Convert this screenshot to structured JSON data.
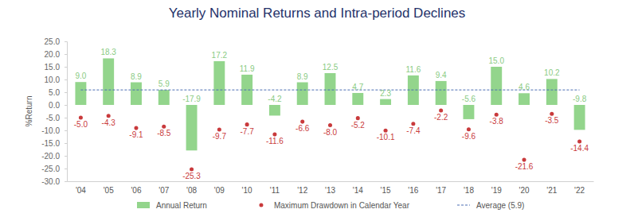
{
  "chart_data": {
    "type": "bar",
    "title": "Yearly Nominal Returns and Intra-period Declines",
    "y_label": "%Return",
    "categories": [
      "'04",
      "'05",
      "'06",
      "'07",
      "'08",
      "'09",
      "'10",
      "'11",
      "'12",
      "'13",
      "'14",
      "'15",
      "'16",
      "'17",
      "'18",
      "'19",
      "'20",
      "'21",
      "'22"
    ],
    "series": [
      {
        "name": "Annual Return",
        "type": "bar",
        "color": "#93d58c",
        "values": [
          9.0,
          18.3,
          8.9,
          5.9,
          -17.9,
          17.2,
          11.9,
          -4.2,
          8.9,
          12.5,
          4.7,
          2.3,
          11.6,
          9.4,
          -5.6,
          15.0,
          4.6,
          10.2,
          -9.8
        ],
        "value_labels": [
          "9.0",
          "18.3",
          "8.9",
          "5.9",
          "-17.9",
          "17.2",
          "11.9",
          "-4.2",
          "8.9",
          "12.5",
          "4.7",
          "2.3",
          "11.6",
          "9.4",
          "-5.6",
          "15.0",
          "4.6",
          "10.2",
          "-9.8"
        ]
      },
      {
        "name": "Maximum Drawdown in Calendar Year",
        "type": "scatter",
        "marker": "circle",
        "color": "#c93a3c",
        "values": [
          -5.0,
          -4.3,
          -9.1,
          -8.5,
          -25.3,
          -9.7,
          -7.7,
          -11.6,
          -6.6,
          -8.0,
          -5.2,
          -10.1,
          -7.4,
          -2.2,
          -9.6,
          -3.8,
          -21.6,
          -3.5,
          -14.4
        ],
        "value_labels": [
          "-5.0",
          "-4.3",
          "-9.1",
          "-8.5",
          "-25.3",
          "-9.7",
          "-7.7",
          "-11.6",
          "-6.6",
          "-8.0",
          "-5.2",
          "-10.1",
          "-7.4",
          "-2.2",
          "-9.6",
          "-3.8",
          "-21.6",
          "-3.5",
          "-14.4"
        ]
      },
      {
        "name": "Average (5.9)",
        "type": "line",
        "line_style": "dashed",
        "color": "#4a6db3",
        "values": [
          5.9,
          5.9,
          5.9,
          5.9,
          5.9,
          5.9,
          5.9,
          5.9,
          5.9,
          5.9,
          5.9,
          5.9,
          5.9,
          5.9,
          5.9,
          5.9,
          5.9,
          5.9,
          5.9
        ]
      }
    ],
    "ylim": [
      -30,
      25
    ],
    "yticks": [
      {
        "value": -30,
        "label": "-30.0"
      },
      {
        "value": -25,
        "label": "-25.0"
      },
      {
        "value": -20,
        "label": "-20.0"
      },
      {
        "value": -15,
        "label": "-15.0"
      },
      {
        "value": -10,
        "label": "-10.0"
      },
      {
        "value": -5,
        "label": "-5.0"
      },
      {
        "value": 0,
        "label": "0.0"
      },
      {
        "value": 5,
        "label": "5.0"
      },
      {
        "value": 10,
        "label": "10.0"
      },
      {
        "value": 15,
        "label": "15.0"
      },
      {
        "value": 20,
        "label": "20.0"
      },
      {
        "value": 25,
        "label": "25.0"
      }
    ],
    "grid": false,
    "legend": "bottom",
    "data_labels": true
  }
}
